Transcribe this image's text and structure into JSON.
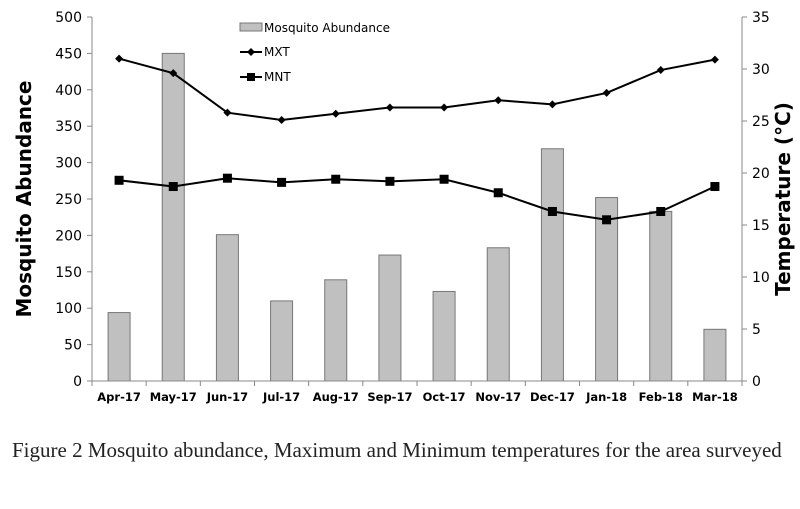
{
  "chart_data": {
    "type": "bar+line",
    "categories": [
      "Apr-17",
      "May-17",
      "Jun-17",
      "Jul-17",
      "Aug-17",
      "Sep-17",
      "Oct-17",
      "Nov-17",
      "Dec-17",
      "Jan-18",
      "Feb-18",
      "Mar-18"
    ],
    "series": [
      {
        "name": "Mosquito Abundance",
        "type": "bar",
        "axis": "left",
        "values": [
          94,
          450,
          201,
          110,
          139,
          173,
          123,
          183,
          319,
          252,
          233,
          71
        ]
      },
      {
        "name": "MXT",
        "type": "line",
        "marker": "diamond",
        "axis": "right",
        "values": [
          31.0,
          29.6,
          25.8,
          25.1,
          25.7,
          26.3,
          26.3,
          27.0,
          26.6,
          27.7,
          29.9,
          30.9
        ]
      },
      {
        "name": "MNT",
        "type": "line",
        "marker": "square",
        "axis": "right",
        "values": [
          19.3,
          18.7,
          19.5,
          19.1,
          19.4,
          19.2,
          19.4,
          18.1,
          16.3,
          15.5,
          16.3,
          18.7
        ]
      }
    ],
    "ylabel": "Mosquito Abundance",
    "ylim": [
      0,
      500
    ],
    "yticks": [
      "0",
      "50",
      "100",
      "150",
      "200",
      "250",
      "300",
      "350",
      "400",
      "450",
      "500"
    ],
    "y2label": "Temperature (°C)",
    "y2lim": [
      0,
      35
    ],
    "y2ticks": [
      "0",
      "5",
      "10",
      "15",
      "20",
      "25",
      "30",
      "35"
    ],
    "legend": "top-center",
    "grid": false,
    "colors": {
      "bar": "#c0c0c0",
      "line": "#000000"
    }
  },
  "caption": "Figure 2 Mosquito abundance, Maximum and Minimum temperatures for the area surveyed"
}
